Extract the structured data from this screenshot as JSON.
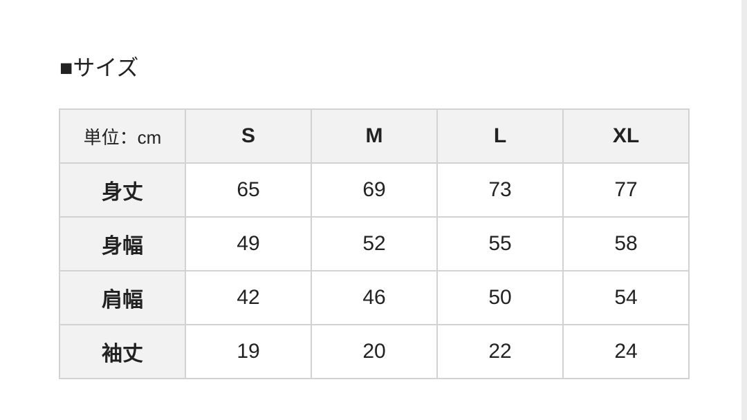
{
  "title": "■サイズ",
  "table": {
    "unit_label": "単位：cm",
    "sizes": [
      "S",
      "M",
      "L",
      "XL"
    ],
    "rows": [
      {
        "label": "身丈",
        "values": [
          "65",
          "69",
          "73",
          "77"
        ]
      },
      {
        "label": "身幅",
        "values": [
          "49",
          "52",
          "55",
          "58"
        ]
      },
      {
        "label": "肩幅",
        "values": [
          "42",
          "46",
          "50",
          "54"
        ]
      },
      {
        "label": "袖丈",
        "values": [
          "19",
          "20",
          "22",
          "24"
        ]
      }
    ]
  }
}
